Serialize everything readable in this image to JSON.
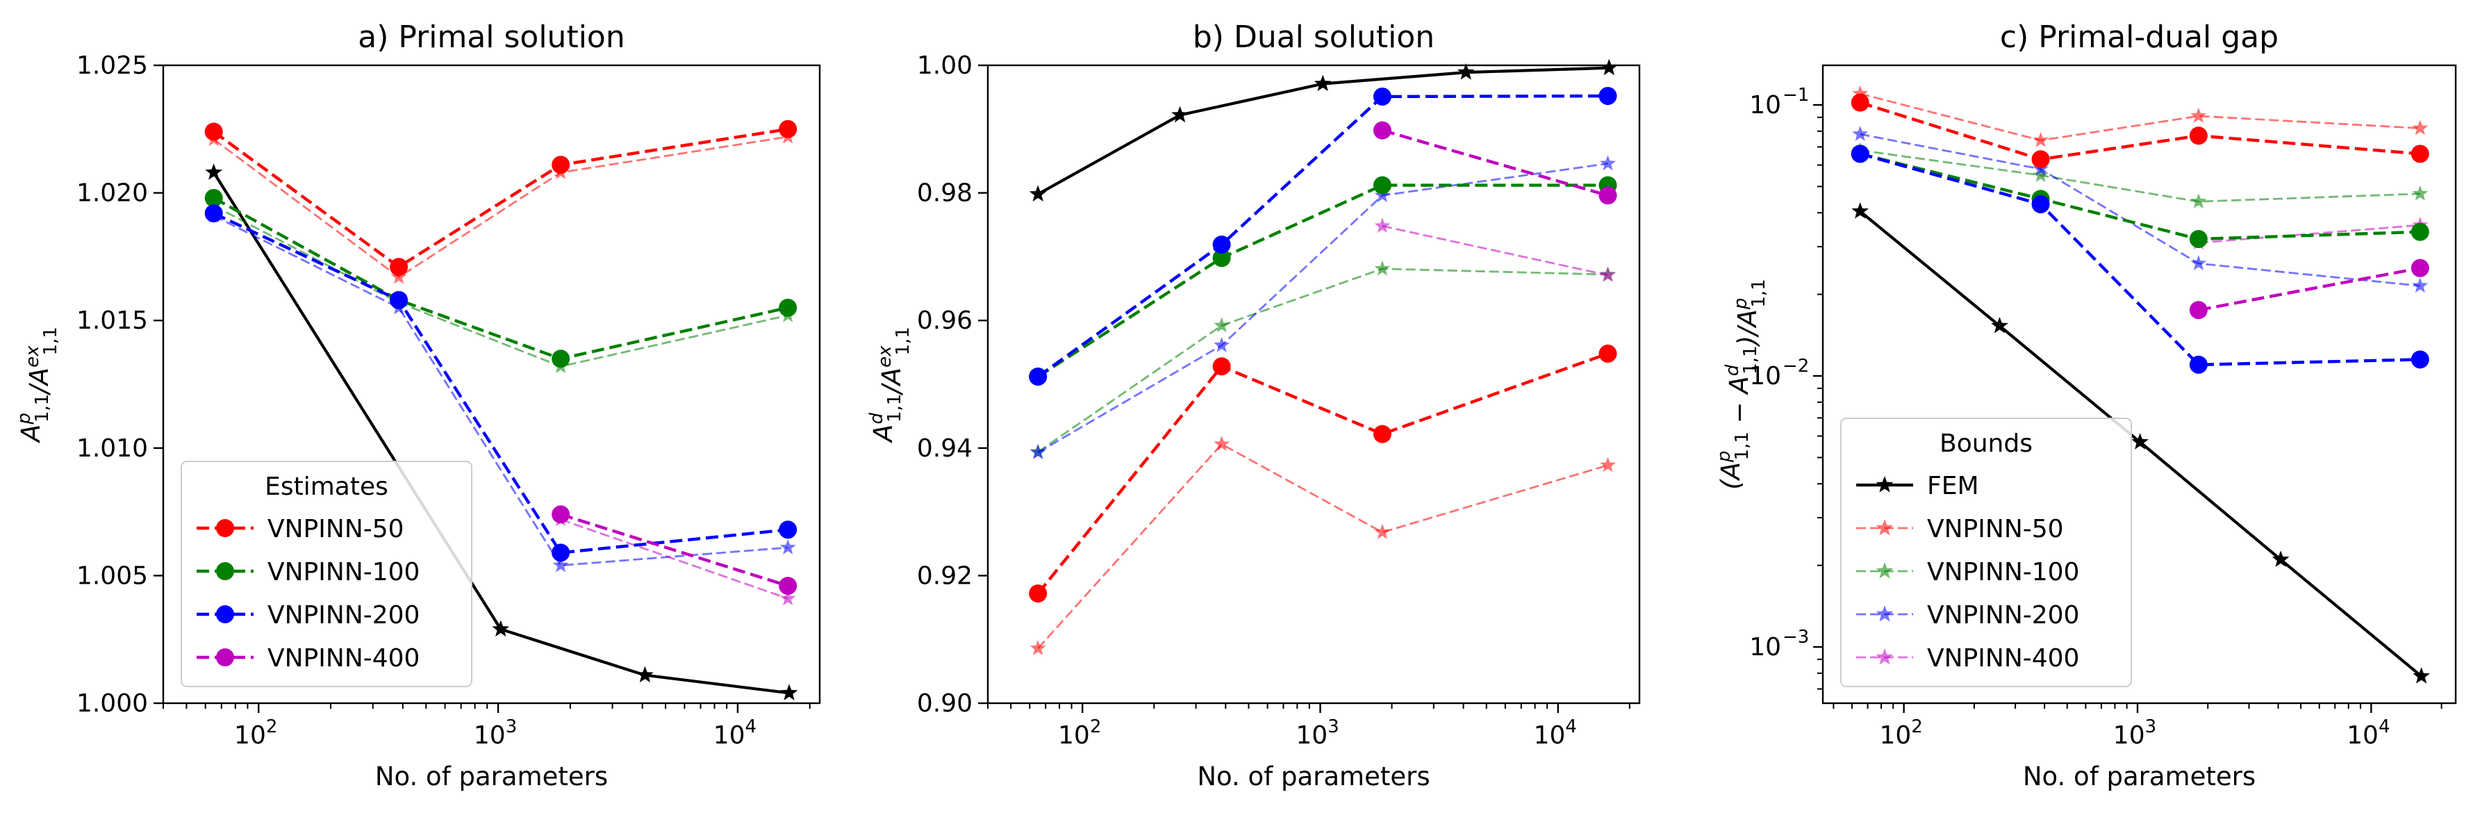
{
  "chart_data": [
    {
      "type": "line",
      "title": "a) Primal solution",
      "xlabel": "No. of parameters",
      "ylabel_parts": [
        "A",
        "p",
        "1,1",
        "/A",
        "ex",
        "1,1"
      ],
      "xscale": "log",
      "yscale": "linear",
      "xlim": [
        40,
        22000
      ],
      "ylim": [
        1.0,
        1.025
      ],
      "xticks": [
        {
          "v": 100,
          "m": "10",
          "e": "2"
        },
        {
          "v": 1000,
          "m": "10",
          "e": "3"
        },
        {
          "v": 10000,
          "m": "10",
          "e": "4"
        }
      ],
      "yticks": [
        {
          "v": 1.0,
          "label": "1.000"
        },
        {
          "v": 1.005,
          "label": "1.005"
        },
        {
          "v": 1.01,
          "label": "1.010"
        },
        {
          "v": 1.015,
          "label": "1.015"
        },
        {
          "v": 1.02,
          "label": "1.020"
        },
        {
          "v": 1.025,
          "label": "1.025"
        }
      ],
      "legend": {
        "title": "Estimates",
        "position": "lower-left",
        "entries": [
          {
            "label": "VNPINN-50",
            "color": "#ff0000",
            "marker": "circle"
          },
          {
            "label": "VNPINN-100",
            "color": "#008000",
            "marker": "circle"
          },
          {
            "label": "VNPINN-200",
            "color": "#0000ff",
            "marker": "circle"
          },
          {
            "label": "VNPINN-400",
            "color": "#bf00bf",
            "marker": "circle"
          }
        ]
      },
      "series": [
        {
          "color": "#000000",
          "style": "fem",
          "x": [
            65,
            1025,
            4100,
            16400
          ],
          "y": [
            1.0208,
            1.0029,
            1.0011,
            1.0004
          ]
        },
        {
          "color": "#ff0000",
          "style": "bound",
          "x": [
            65,
            385,
            1825,
            16200
          ],
          "y": [
            1.0221,
            1.0167,
            1.0208,
            1.0222
          ]
        },
        {
          "color": "#008000",
          "style": "bound",
          "x": [
            65,
            385,
            1825,
            16200
          ],
          "y": [
            1.0195,
            1.0157,
            1.0132,
            1.0152
          ]
        },
        {
          "color": "#0000ff",
          "style": "bound",
          "x": [
            65,
            385,
            1825,
            16200
          ],
          "y": [
            1.0191,
            1.0155,
            1.0054,
            1.0061
          ]
        },
        {
          "color": "#bf00bf",
          "style": "bound",
          "x": [
            1825,
            16200
          ],
          "y": [
            1.0072,
            1.0041
          ]
        },
        {
          "color": "#ff0000",
          "style": "estimate",
          "x": [
            65,
            385,
            1825,
            16200
          ],
          "y": [
            1.0224,
            1.0171,
            1.0211,
            1.0225
          ]
        },
        {
          "color": "#008000",
          "style": "estimate",
          "x": [
            65,
            385,
            1825,
            16200
          ],
          "y": [
            1.0198,
            1.0158,
            1.0135,
            1.0155
          ]
        },
        {
          "color": "#0000ff",
          "style": "estimate",
          "x": [
            65,
            385,
            1825,
            16200
          ],
          "y": [
            1.0192,
            1.0158,
            1.0059,
            1.0068
          ]
        },
        {
          "color": "#bf00bf",
          "style": "estimate",
          "x": [
            1825,
            16200
          ],
          "y": [
            1.0074,
            1.0046
          ]
        }
      ]
    },
    {
      "type": "line",
      "title": "b) Dual solution",
      "xlabel": "No. of parameters",
      "ylabel_parts": [
        "A",
        "d",
        "1,1",
        "/A",
        "ex",
        "1,1"
      ],
      "xscale": "log",
      "yscale": "linear",
      "xlim": [
        40,
        22000
      ],
      "ylim": [
        0.9,
        1.0
      ],
      "xticks": [
        {
          "v": 100,
          "m": "10",
          "e": "2"
        },
        {
          "v": 1000,
          "m": "10",
          "e": "3"
        },
        {
          "v": 10000,
          "m": "10",
          "e": "4"
        }
      ],
      "yticks": [
        {
          "v": 0.9,
          "label": "0.90"
        },
        {
          "v": 0.92,
          "label": "0.92"
        },
        {
          "v": 0.94,
          "label": "0.94"
        },
        {
          "v": 0.96,
          "label": "0.96"
        },
        {
          "v": 0.98,
          "label": "0.98"
        },
        {
          "v": 1.0,
          "label": "1.00"
        }
      ],
      "series": [
        {
          "color": "#000000",
          "style": "fem",
          "x": [
            65,
            257,
            1025,
            4100,
            16400
          ],
          "y": [
            0.9798,
            0.9922,
            0.9971,
            0.9989,
            0.9996
          ]
        },
        {
          "color": "#ff0000",
          "style": "bound",
          "x": [
            65,
            385,
            1825,
            16200
          ],
          "y": [
            0.9086,
            0.9406,
            0.9268,
            0.9373
          ]
        },
        {
          "color": "#008000",
          "style": "bound",
          "x": [
            65,
            385,
            1825,
            16200
          ],
          "y": [
            0.9394,
            0.9592,
            0.9681,
            0.9672
          ]
        },
        {
          "color": "#0000ff",
          "style": "bound",
          "x": [
            65,
            385,
            1825,
            16200
          ],
          "y": [
            0.9393,
            0.9561,
            0.9796,
            0.9846
          ]
        },
        {
          "color": "#bf00bf",
          "style": "bound",
          "x": [
            1825,
            16200
          ],
          "y": [
            0.9748,
            0.9671
          ]
        },
        {
          "color": "#ff0000",
          "style": "estimate",
          "x": [
            65,
            385,
            1825,
            16200
          ],
          "y": [
            0.9172,
            0.9528,
            0.9422,
            0.9548
          ]
        },
        {
          "color": "#008000",
          "style": "estimate",
          "x": [
            65,
            385,
            1825,
            16200
          ],
          "y": [
            0.9512,
            0.9698,
            0.9812,
            0.9812
          ]
        },
        {
          "color": "#0000ff",
          "style": "estimate",
          "x": [
            65,
            385,
            1825,
            16200
          ],
          "y": [
            0.9512,
            0.9719,
            0.9951,
            0.9952
          ]
        },
        {
          "color": "#bf00bf",
          "style": "estimate",
          "x": [
            1825,
            16200
          ],
          "y": [
            0.9898,
            0.9796
          ]
        }
      ]
    },
    {
      "type": "line",
      "title": "c) Primal-dual gap",
      "xlabel": "No. of parameters",
      "ylabel_parts": [
        "(A",
        "p",
        "1,1",
        " − A",
        "d",
        "1,1",
        ")/A",
        "p",
        "1,1"
      ],
      "xscale": "log",
      "yscale": "log",
      "xlim": [
        45,
        23000
      ],
      "ylim": [
        0.00062,
        0.14
      ],
      "xticks": [
        {
          "v": 100,
          "m": "10",
          "e": "2"
        },
        {
          "v": 1000,
          "m": "10",
          "e": "3"
        },
        {
          "v": 10000,
          "m": "10",
          "e": "4"
        }
      ],
      "yticks": [
        {
          "v": 0.001,
          "m": "10",
          "e": "−3"
        },
        {
          "v": 0.01,
          "m": "10",
          "e": "−2"
        },
        {
          "v": 0.1,
          "m": "10",
          "e": "−1"
        }
      ],
      "legend": {
        "title": "Bounds",
        "position": "lower-left",
        "entries": [
          {
            "label": "FEM",
            "color": "#000000",
            "marker": "star"
          },
          {
            "label": "VNPINN-50",
            "color": "#ff0000",
            "marker": "star"
          },
          {
            "label": "VNPINN-100",
            "color": "#008000",
            "marker": "star"
          },
          {
            "label": "VNPINN-200",
            "color": "#0000ff",
            "marker": "star"
          },
          {
            "label": "VNPINN-400",
            "color": "#bf00bf",
            "marker": "star"
          }
        ]
      },
      "series": [
        {
          "color": "#000000",
          "style": "fem",
          "x": [
            65,
            257,
            1025,
            4100,
            16400
          ],
          "y": [
            0.0405,
            0.0153,
            0.0057,
            0.0021,
            0.00078
          ]
        },
        {
          "color": "#ff0000",
          "style": "bound",
          "x": [
            65,
            385,
            1825,
            16200
          ],
          "y": [
            0.11,
            0.074,
            0.091,
            0.082
          ]
        },
        {
          "color": "#008000",
          "style": "bound",
          "x": [
            65,
            385,
            1825,
            16200
          ],
          "y": [
            0.068,
            0.055,
            0.044,
            0.047
          ]
        },
        {
          "color": "#0000ff",
          "style": "bound",
          "x": [
            65,
            385,
            1825,
            16200
          ],
          "y": [
            0.078,
            0.058,
            0.026,
            0.0215
          ]
        },
        {
          "color": "#bf00bf",
          "style": "bound",
          "x": [
            1825,
            16200
          ],
          "y": [
            0.031,
            0.036
          ]
        },
        {
          "color": "#ff0000",
          "style": "estimate",
          "x": [
            65,
            385,
            1825,
            16200
          ],
          "y": [
            0.102,
            0.063,
            0.077,
            0.066
          ]
        },
        {
          "color": "#008000",
          "style": "estimate",
          "x": [
            65,
            385,
            1825,
            16200
          ],
          "y": [
            0.066,
            0.045,
            0.032,
            0.034
          ]
        },
        {
          "color": "#0000ff",
          "style": "estimate",
          "x": [
            65,
            385,
            1825,
            16200
          ],
          "y": [
            0.066,
            0.043,
            0.011,
            0.0115
          ]
        },
        {
          "color": "#bf00bf",
          "style": "estimate",
          "x": [
            1825,
            16200
          ],
          "y": [
            0.0175,
            0.025
          ]
        }
      ]
    }
  ]
}
